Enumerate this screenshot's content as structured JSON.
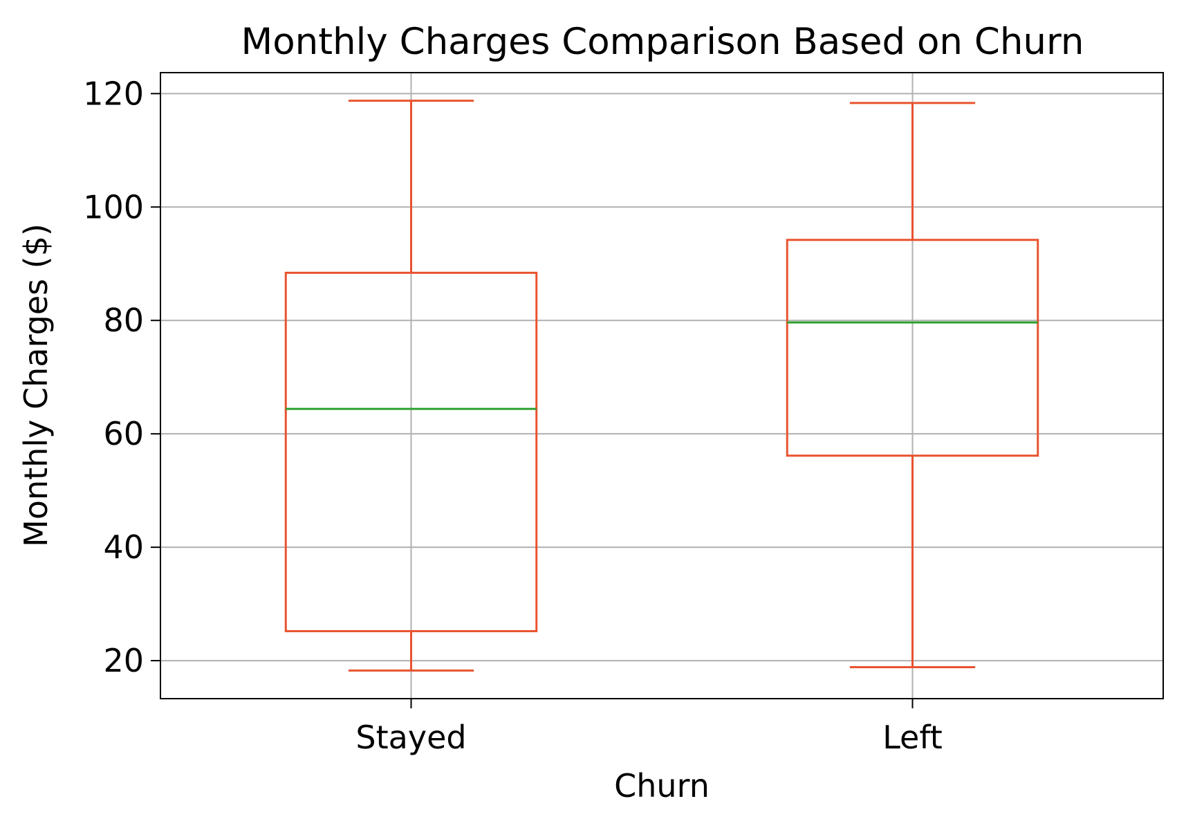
{
  "chart_data": {
    "type": "box",
    "title": "Monthly Charges Comparison Based on Churn",
    "xlabel": "Churn",
    "ylabel": "Monthly Charges ($)",
    "categories": [
      "Stayed",
      "Left"
    ],
    "boxes": [
      {
        "category": "Stayed",
        "whisker_low": 18.25,
        "q1": 25.2,
        "median": 64.4,
        "q3": 88.4,
        "whisker_high": 118.75
      },
      {
        "category": "Left",
        "whisker_low": 18.85,
        "q1": 56.15,
        "median": 79.65,
        "q3": 94.2,
        "whisker_high": 118.35
      }
    ],
    "ylim": [
      13.3,
      123.7
    ],
    "yticks": [
      20,
      40,
      60,
      80,
      100,
      120
    ],
    "grid": true,
    "legend": "none",
    "colors": {
      "box": "#e8532f",
      "median": "#2ca02c",
      "grid": "#b0b0b0",
      "axes": "#000000"
    }
  }
}
